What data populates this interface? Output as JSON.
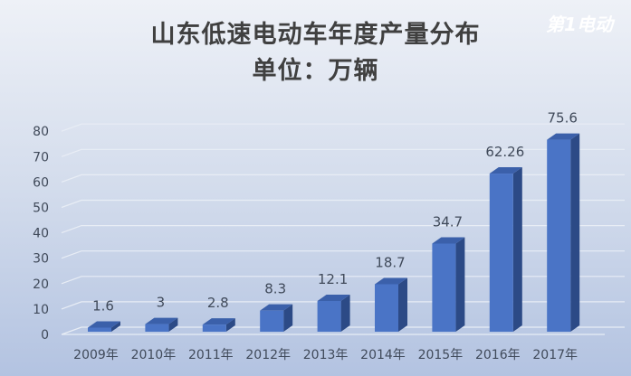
{
  "chart_data": {
    "type": "bar",
    "title": "山东低速电动车年度产量分布",
    "subtitle": "单位：万辆",
    "categories": [
      "2009年",
      "2010年",
      "2011年",
      "2012年",
      "2013年",
      "2014年",
      "2015年",
      "2016年",
      "2017年"
    ],
    "values": [
      1.6,
      3,
      2.8,
      8.3,
      12.1,
      18.7,
      34.7,
      62.26,
      75.6
    ],
    "data_labels": [
      "1.6",
      "3",
      "2.8",
      "8.3",
      "12.1",
      "18.7",
      "34.7",
      "62.26",
      "75.6"
    ],
    "ylim": [
      0,
      80
    ],
    "yticks": [
      "0",
      "10",
      "20",
      "30",
      "40",
      "50",
      "60",
      "70",
      "80"
    ],
    "grid": true,
    "style": "3d-column",
    "colors": {
      "bar_front": "#4a74c6",
      "bar_side": "#2c4a86",
      "bar_top": "#3b60aa",
      "grid": "#e8edf5"
    }
  },
  "watermark": "第1电动"
}
